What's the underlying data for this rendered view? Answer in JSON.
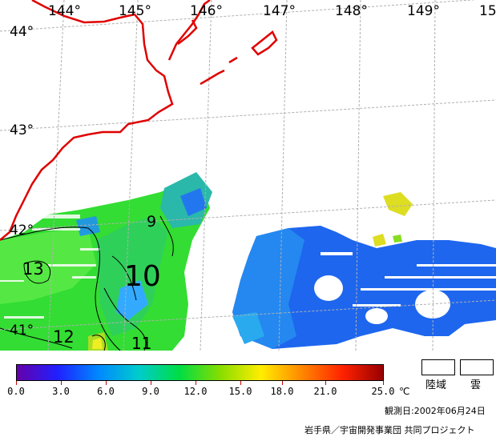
{
  "map": {
    "longitude_labels": [
      "144°",
      "145°",
      "146°",
      "147°",
      "148°",
      "149°",
      "15"
    ],
    "latitude_labels": [
      "44°",
      "43°",
      "42°",
      "41°"
    ],
    "contour_labels": [
      "9",
      "10",
      "13",
      "12",
      "11"
    ],
    "coastline_color": "#e00000",
    "grid_color": "#b0b0b0"
  },
  "legend": {
    "colorbar_colors": [
      "#6600aa",
      "#2020ff",
      "#0088ff",
      "#00cccc",
      "#00dd44",
      "#88dd00",
      "#ffee00",
      "#ff8800",
      "#ff2200",
      "#990000"
    ],
    "tick_labels": [
      "0.0",
      "3.0",
      "6.0",
      "9.0",
      "12.0",
      "15.0",
      "18.0",
      "21.0",
      "25.0"
    ],
    "unit": "℃",
    "land_label": "陸域",
    "cloud_label": "雲"
  },
  "footer": {
    "observation_date": "観測日:2002年06月24日",
    "credit": "岩手県／宇宙開発事業団 共同プロジェクト"
  }
}
